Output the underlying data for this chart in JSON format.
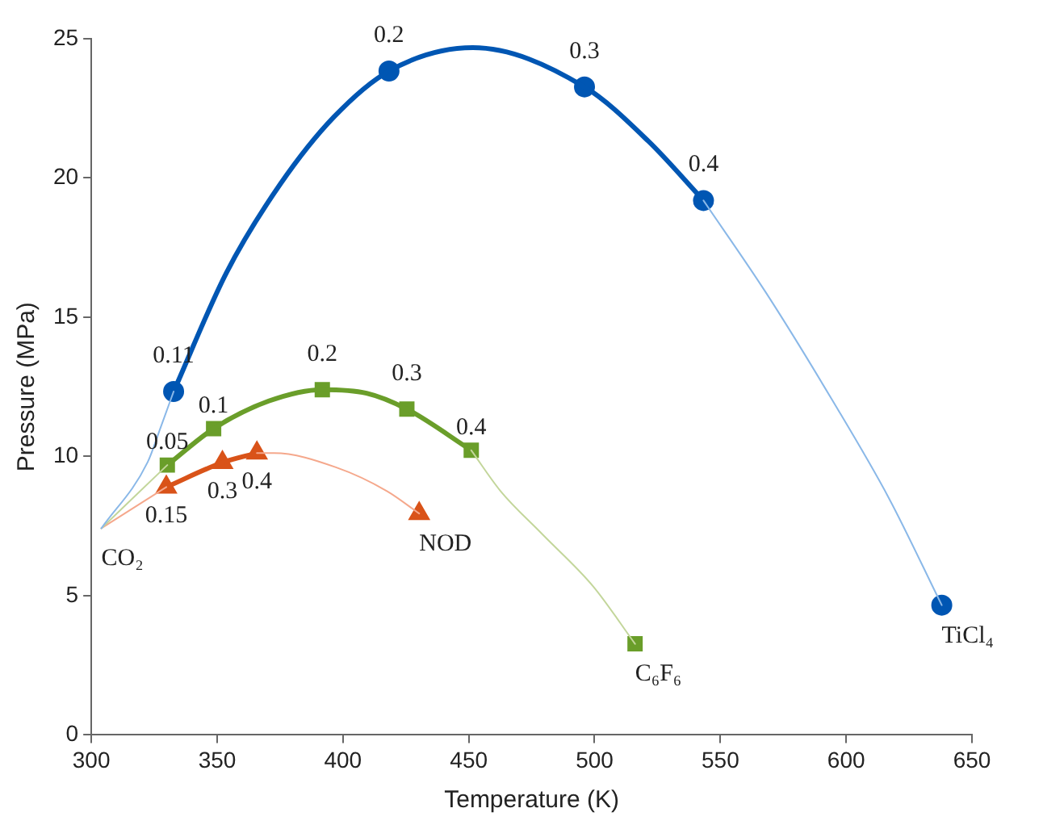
{
  "chart_data": {
    "type": "line",
    "xlabel": "Temperature (K)",
    "ylabel": "Pressure (MPa)",
    "xlim": [
      300,
      650
    ],
    "xticks": [
      300,
      350,
      400,
      450,
      500,
      550,
      600,
      650
    ],
    "ylim": [
      0,
      25
    ],
    "yticks": [
      0,
      5,
      10,
      15,
      20,
      25
    ],
    "grid": false,
    "legend": false,
    "series": [
      {
        "color": "#8ab8e8",
        "marker": "none",
        "x": [
          304,
          322.4,
          327.5,
          332.7,
          400,
          543.3,
          568,
          594.7,
          617,
          638
        ],
        "values": [
          7.42,
          9.8,
          11.03,
          12.33,
          null,
          19.19,
          15.9,
          11.99,
          8.5,
          4.66
        ]
      },
      {
        "color": "#0056b3",
        "marker": "none",
        "x": [
          332.7,
          353.7,
          375.1,
          396.4,
          418.3,
          451.6,
          496,
          521.4,
          543.3
        ],
        "values": [
          12.33,
          16.6,
          19.78,
          22.19,
          23.84,
          24.68,
          23.27,
          21.32,
          19.19
        ]
      },
      {
        "type": "scatter",
        "color": "#0056b3",
        "marker": "circle",
        "x": [
          332.7,
          418.3,
          496,
          543.3,
          638
        ],
        "values": [
          12.33,
          23.84,
          23.27,
          19.19,
          4.66
        ]
      },
      {
        "color": "#c3d69b",
        "marker": "none",
        "x": [
          304,
          330.2,
          400,
          451,
          462.7,
          479,
          499.5,
          516.1
        ],
        "values": [
          7.42,
          9.69,
          null,
          10.22,
          8.75,
          7.23,
          5.33,
          3.27
        ]
      },
      {
        "color": "#6a9e2a",
        "marker": "none",
        "x": [
          330.2,
          348.6,
          370.5,
          391.8,
          409.4,
          425.4,
          451
        ],
        "values": [
          9.69,
          11.0,
          11.99,
          12.4,
          12.27,
          11.7,
          10.22
        ]
      },
      {
        "type": "scatter",
        "color": "#6a9e2a",
        "marker": "square",
        "x": [
          330.2,
          348.6,
          391.8,
          425.4,
          451,
          516.1
        ],
        "values": [
          9.69,
          11.0,
          12.4,
          11.7,
          10.22,
          3.27
        ]
      },
      {
        "color": "#f5a88c",
        "marker": "none",
        "x": [
          304,
          329.8,
          350,
          365.8,
          372.6,
          397.2,
          417.6,
          430.3
        ],
        "values": [
          7.42,
          8.9,
          null,
          10.12,
          10.12,
          9.61,
          8.75,
          7.95
        ]
      },
      {
        "color": "#d95319",
        "marker": "none",
        "x": [
          329.8,
          352.1,
          365.8
        ],
        "values": [
          8.9,
          9.78,
          10.12
        ]
      },
      {
        "type": "scatter",
        "color": "#d95319",
        "marker": "triangle",
        "x": [
          329.8,
          352.1,
          365.8,
          430.3
        ],
        "values": [
          8.9,
          9.78,
          10.12,
          7.95
        ]
      }
    ],
    "annotations": [
      {
        "text": "0.11",
        "x": 332.7,
        "y": 12.33
      },
      {
        "text": "0.2",
        "x": 418.3,
        "y": 23.84
      },
      {
        "text": "0.3",
        "x": 496,
        "y": 23.27
      },
      {
        "text": "0.4",
        "x": 543.3,
        "y": 19.19
      },
      {
        "text": "0.05",
        "x": 330.2,
        "y": 9.69
      },
      {
        "text": "0.1",
        "x": 348.6,
        "y": 11.0
      },
      {
        "text": "0.2",
        "x": 391.8,
        "y": 12.4
      },
      {
        "text": "0.3",
        "x": 425.4,
        "y": 11.7
      },
      {
        "text": "0.4",
        "x": 451,
        "y": 10.22
      },
      {
        "text": "0.15",
        "x": 329.8,
        "y": 8.9
      },
      {
        "text": "0.3",
        "x": 352.1,
        "y": 9.78
      },
      {
        "text": "0.4",
        "x": 365.8,
        "y": 10.12
      },
      {
        "text": "CO₂",
        "x": 304,
        "y": 7.42
      },
      {
        "text": "NOD",
        "x": 430.3,
        "y": 7.95
      },
      {
        "text": "C₆F₆",
        "x": 516.1,
        "y": 3.27
      },
      {
        "text": "TiCl₄",
        "x": 638,
        "y": 4.66
      }
    ]
  }
}
